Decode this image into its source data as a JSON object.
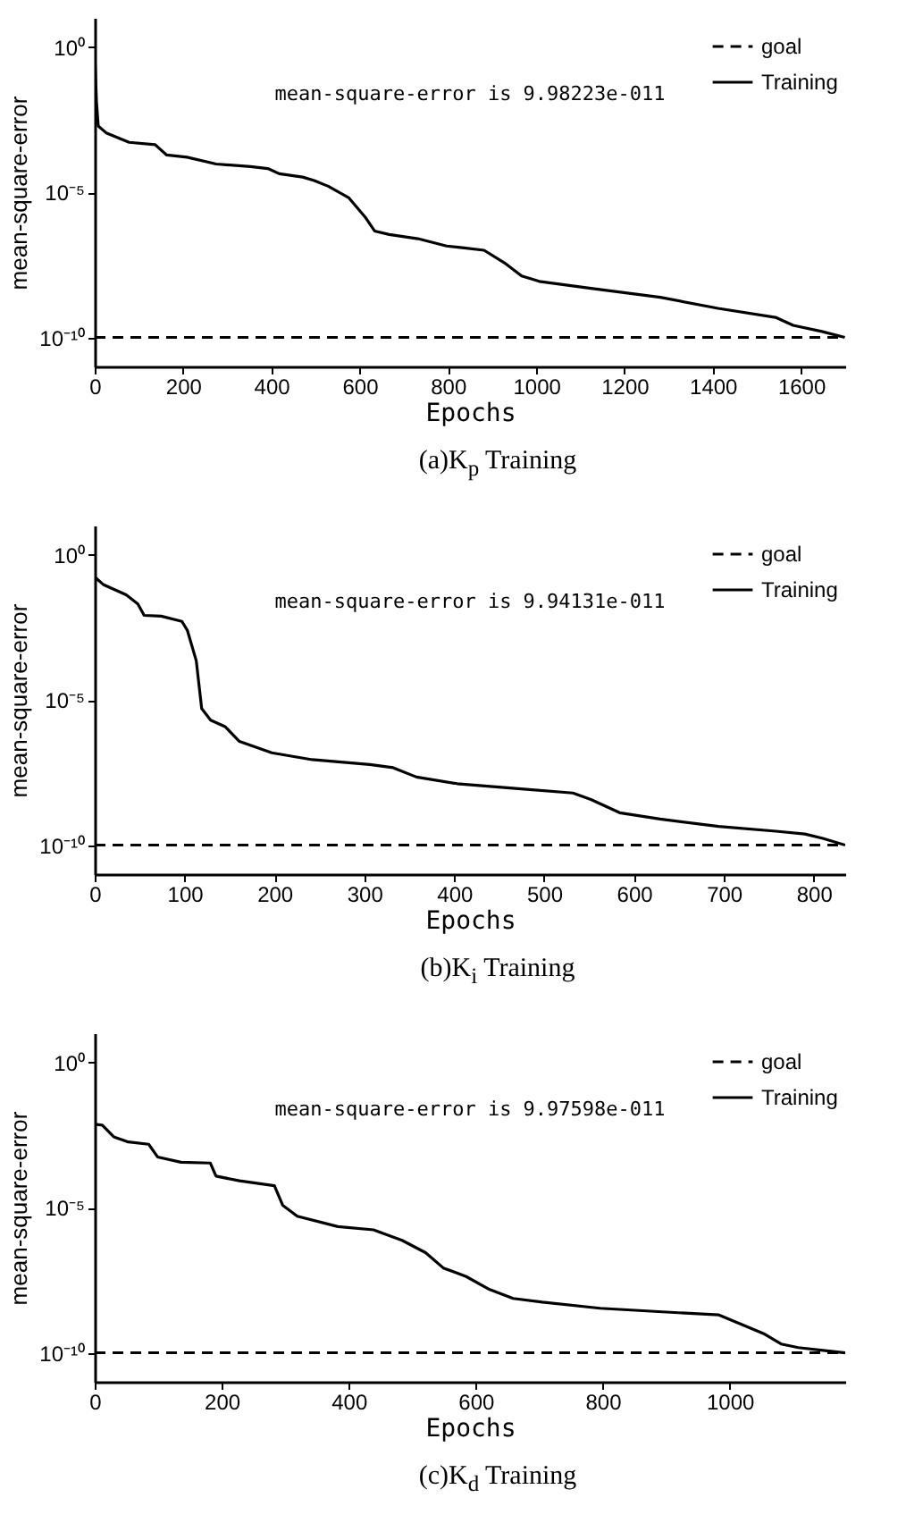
{
  "chart_data": [
    {
      "type": "line",
      "title": "(a)K$_{p}$ Training",
      "xlabel": "Epochs",
      "ylabel": "mean-square-error",
      "annotations": [
        "mean-square-error is 9.98223e-011"
      ],
      "log": "y",
      "legend": "top right",
      "xlim": [
        0,
        1700
      ],
      "xticks": [
        0,
        200,
        400,
        600,
        800,
        1000,
        1200,
        1400,
        1600
      ],
      "ylim": [
        1e-11,
        10
      ],
      "yticks": [
        {
          "value": 1e-10,
          "label": "10⁻¹⁰"
        },
        {
          "value": 1e-05,
          "label": "10⁻⁵"
        },
        {
          "value": 1,
          "label": "10⁰"
        }
      ],
      "series": [
        {
          "name": "goal",
          "color": "#000000",
          "line_style": "dashed",
          "x": [
            0,
            1700
          ],
          "values": [
            1e-10,
            1e-10
          ]
        },
        {
          "name": "Training",
          "color": "#000000",
          "line_style": "solid",
          "x": [
            0,
            4,
            8,
            26,
            78,
            137,
            163,
            209,
            275,
            353,
            392,
            418,
            471,
            497,
            529,
            575,
            614,
            634,
            667,
            732,
            797,
            837,
            882,
            928,
            967,
            1007,
            1124,
            1281,
            1412,
            1542,
            1582,
            1647,
            1699
          ],
          "values": [
            0.71,
            0.013,
            0.0019,
            0.0011,
            0.00052,
            0.00043,
            0.00019,
            0.00016,
            9.3e-05,
            7.6e-05,
            6.5e-05,
            4.3e-05,
            3.3e-05,
            2.5e-05,
            1.6e-05,
            6.5e-06,
            1.3e-06,
            4.6e-07,
            3.5e-07,
            2.5e-07,
            1.4e-07,
            1.2e-07,
            1e-07,
            3.7e-08,
            1.3e-08,
            8.5e-09,
            4.9e-09,
            2.4e-09,
            1e-09,
            4.9e-10,
            2.6e-10,
            1.6e-10,
            9.98223e-11
          ]
        }
      ]
    },
    {
      "type": "line",
      "title": "(b)K$_{i}$ Training",
      "xlabel": "Epochs",
      "ylabel": "mean-square-error",
      "annotations": [
        "mean-square-error is 9.94131e-011"
      ],
      "log": "y",
      "legend": "top right",
      "xlim": [
        0,
        835
      ],
      "xticks": [
        0,
        100,
        200,
        300,
        400,
        500,
        600,
        700,
        800
      ],
      "ylim": [
        1e-11,
        10
      ],
      "yticks": [
        {
          "value": 1e-10,
          "label": "10⁻¹⁰"
        },
        {
          "value": 1e-05,
          "label": "10⁻⁵"
        },
        {
          "value": 1,
          "label": "10⁰"
        }
      ],
      "series": [
        {
          "name": "goal",
          "color": "#000000",
          "line_style": "dashed",
          "x": [
            0,
            835
          ],
          "values": [
            1e-10,
            1e-10
          ]
        },
        {
          "name": "Training",
          "color": "#000000",
          "line_style": "solid",
          "x": [
            0,
            10,
            35,
            48,
            55,
            74,
            97,
            103,
            113,
            119,
            129,
            145,
            161,
            197,
            242,
            306,
            332,
            358,
            403,
            468,
            532,
            552,
            584,
            629,
            694,
            758,
            790,
            810,
            835
          ],
          "values": [
            0.17,
            0.091,
            0.041,
            0.02,
            0.0081,
            0.0076,
            0.005,
            0.0025,
            0.00022,
            5e-06,
            2e-06,
            1.2e-06,
            3.7e-07,
            1.5e-07,
            8.7e-08,
            5.9e-08,
            4.6e-08,
            2.2e-08,
            1.3e-08,
            8.9e-09,
            6.2e-09,
            3.7e-09,
            1.3e-09,
            7.9e-10,
            4.4e-10,
            3e-10,
            2.4e-10,
            1.7e-10,
            9.94131e-11
          ]
        }
      ]
    },
    {
      "type": "line",
      "title": "(c)K$_{d}$ Training",
      "xlabel": "Epochs",
      "ylabel": "mean-square-error",
      "annotations": [
        "mean-square-error is 9.97598e-011"
      ],
      "log": "y",
      "legend": "top right",
      "xlim": [
        0,
        1182
      ],
      "xticks": [
        0,
        200,
        400,
        600,
        800,
        1000
      ],
      "ylim": [
        1e-11,
        10
      ],
      "yticks": [
        {
          "value": 1e-10,
          "label": "10⁻¹⁰"
        },
        {
          "value": 1e-05,
          "label": "10⁻⁵"
        },
        {
          "value": 1,
          "label": "10⁰"
        }
      ],
      "series": [
        {
          "name": "goal",
          "color": "#000000",
          "line_style": "dashed",
          "x": [
            0,
            1182
          ],
          "values": [
            1e-10,
            1e-10
          ]
        },
        {
          "name": "Training",
          "color": "#000000",
          "line_style": "solid",
          "x": [
            0,
            12,
            30,
            53,
            85,
            99,
            136,
            182,
            191,
            228,
            283,
            296,
            319,
            383,
            439,
            484,
            521,
            549,
            585,
            622,
            659,
            705,
            796,
            888,
            983,
            1016,
            1053,
            1081,
            1108,
            1163,
            1182
          ],
          "values": [
            0.0073,
            0.0068,
            0.0027,
            0.0018,
            0.0015,
            0.00055,
            0.00036,
            0.00034,
            0.00012,
            8.3e-05,
            5.6e-05,
            1.2e-05,
            5e-06,
            2.2e-06,
            1.7e-06,
            7.4e-07,
            2.8e-07,
            8.3e-08,
            4.2e-08,
            1.5e-08,
            7.4e-09,
            5.5e-09,
            3.4e-09,
            2.6e-09,
            2e-09,
            1e-09,
            4.6e-10,
            2e-10,
            1.5e-10,
            1.1e-10,
            9.97598e-11
          ]
        }
      ]
    }
  ]
}
